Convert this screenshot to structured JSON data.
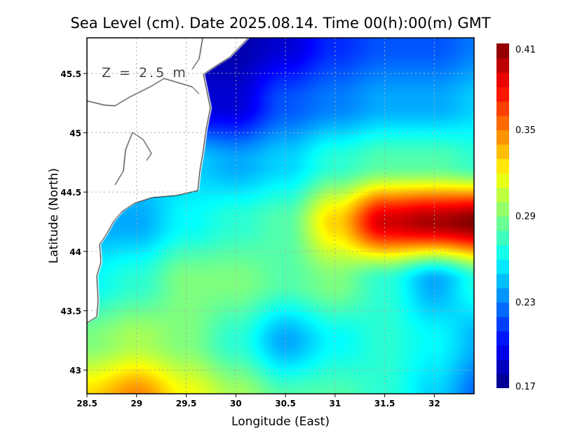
{
  "chart_data": {
    "type": "heatmap",
    "title": "Sea Level (cm). Date 2025.08.14. Time 00(h):00(m) GMT",
    "xlabel": "Longitude (East)",
    "ylabel": "Latitude (North)",
    "annotation": "Z = 2.5 m",
    "xlim": [
      28.5,
      32.4
    ],
    "ylim": [
      42.8,
      45.8
    ],
    "xticks": [
      "28.5",
      "29",
      "29.5",
      "30",
      "30.5",
      "31",
      "31.5",
      "32"
    ],
    "yticks": [
      "43",
      "43.5",
      "44",
      "44.5",
      "45",
      "45.5"
    ],
    "grid": true,
    "colorbar": {
      "min": 0.17,
      "max": 0.41,
      "ticks": [
        "0.17",
        "0.23",
        "0.29",
        "0.35",
        "0.41"
      ],
      "colormap": "jet"
    },
    "lon": [
      28.5,
      29,
      29.5,
      30,
      30.5,
      31,
      31.5,
      32,
      32.5
    ],
    "lat": [
      45.75,
      45.25,
      44.75,
      44.25,
      43.75,
      43.25,
      42.75
    ],
    "values": [
      [
        null,
        null,
        null,
        0.18,
        0.19,
        0.21,
        0.22,
        0.22,
        0.23
      ],
      [
        null,
        null,
        null,
        0.19,
        0.22,
        0.23,
        0.24,
        0.24,
        0.25
      ],
      [
        null,
        null,
        0.25,
        0.24,
        0.25,
        0.27,
        0.28,
        0.28,
        0.27
      ],
      [
        null,
        0.24,
        0.26,
        0.27,
        0.28,
        0.33,
        0.39,
        0.4,
        0.41
      ],
      [
        0.26,
        0.27,
        0.29,
        0.29,
        0.28,
        0.29,
        0.27,
        0.24,
        0.27
      ],
      [
        0.29,
        0.3,
        0.29,
        0.27,
        0.24,
        0.26,
        0.27,
        0.26,
        0.24
      ],
      [
        0.33,
        0.35,
        0.32,
        0.3,
        0.28,
        0.28,
        0.27,
        0.25,
        0.22
      ]
    ]
  }
}
